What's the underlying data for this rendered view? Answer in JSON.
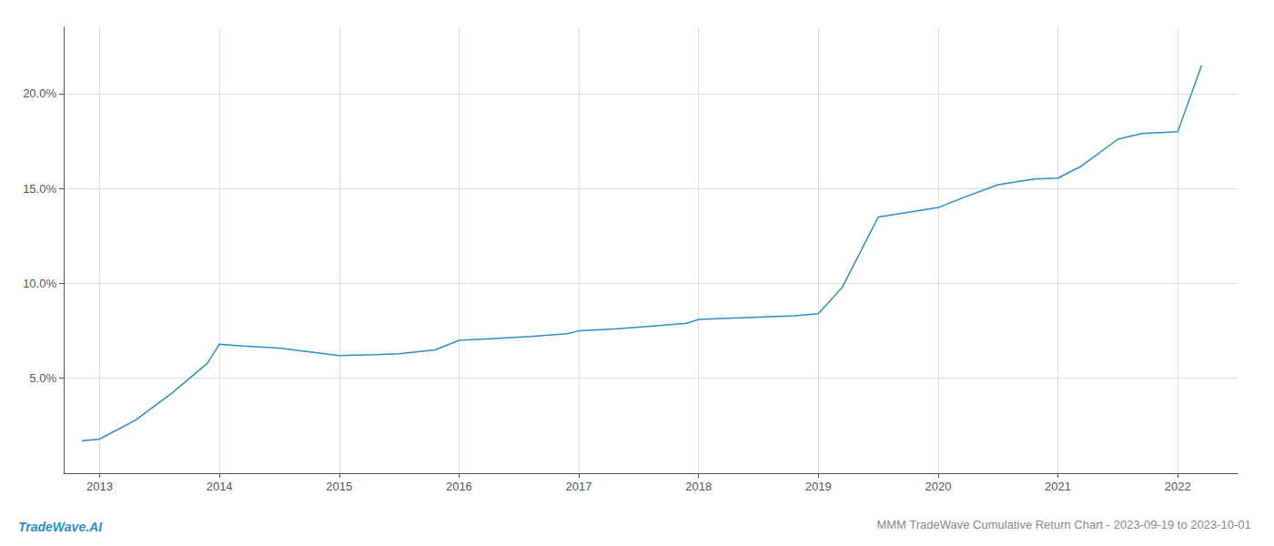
{
  "chart_data": {
    "type": "line",
    "title": "MMM TradeWave Cumulative Return Chart - 2023-09-19 to 2023-10-01",
    "annotations": [
      "TradeWave.AI"
    ],
    "x": [
      2012.85,
      2013.0,
      2013.3,
      2013.6,
      2013.9,
      2014.0,
      2014.2,
      2014.5,
      2014.8,
      2015.0,
      2015.3,
      2015.5,
      2015.8,
      2016.0,
      2016.3,
      2016.6,
      2016.9,
      2017.0,
      2017.3,
      2017.6,
      2017.9,
      2018.0,
      2018.2,
      2018.4,
      2018.6,
      2018.8,
      2019.0,
      2019.2,
      2019.5,
      2019.8,
      2020.0,
      2020.2,
      2020.5,
      2020.8,
      2021.0,
      2021.2,
      2021.5,
      2021.7,
      2022.0,
      2022.2
    ],
    "values": [
      1.7,
      1.8,
      2.8,
      4.2,
      5.8,
      6.8,
      6.7,
      6.6,
      6.35,
      6.2,
      6.25,
      6.3,
      6.5,
      7.0,
      7.1,
      7.2,
      7.35,
      7.5,
      7.6,
      7.75,
      7.9,
      8.1,
      8.15,
      8.2,
      8.25,
      8.3,
      8.4,
      9.8,
      13.5,
      13.8,
      14.0,
      14.5,
      15.2,
      15.5,
      15.55,
      16.2,
      17.6,
      17.9,
      18.0,
      21.5
    ],
    "color": "#2c8fc8",
    "xlim": [
      2012.7,
      2022.5
    ],
    "ylim": [
      0,
      23.5
    ],
    "xticks": [
      2013,
      2014,
      2015,
      2016,
      2017,
      2018,
      2019,
      2020,
      2021,
      2022
    ],
    "yticks": [
      {
        "value": 5.0,
        "label": "5.0%"
      },
      {
        "value": 10.0,
        "label": "10.0%"
      },
      {
        "value": 15.0,
        "label": "15.0%"
      },
      {
        "value": 20.0,
        "label": "20.0%"
      }
    ],
    "grid": true
  }
}
